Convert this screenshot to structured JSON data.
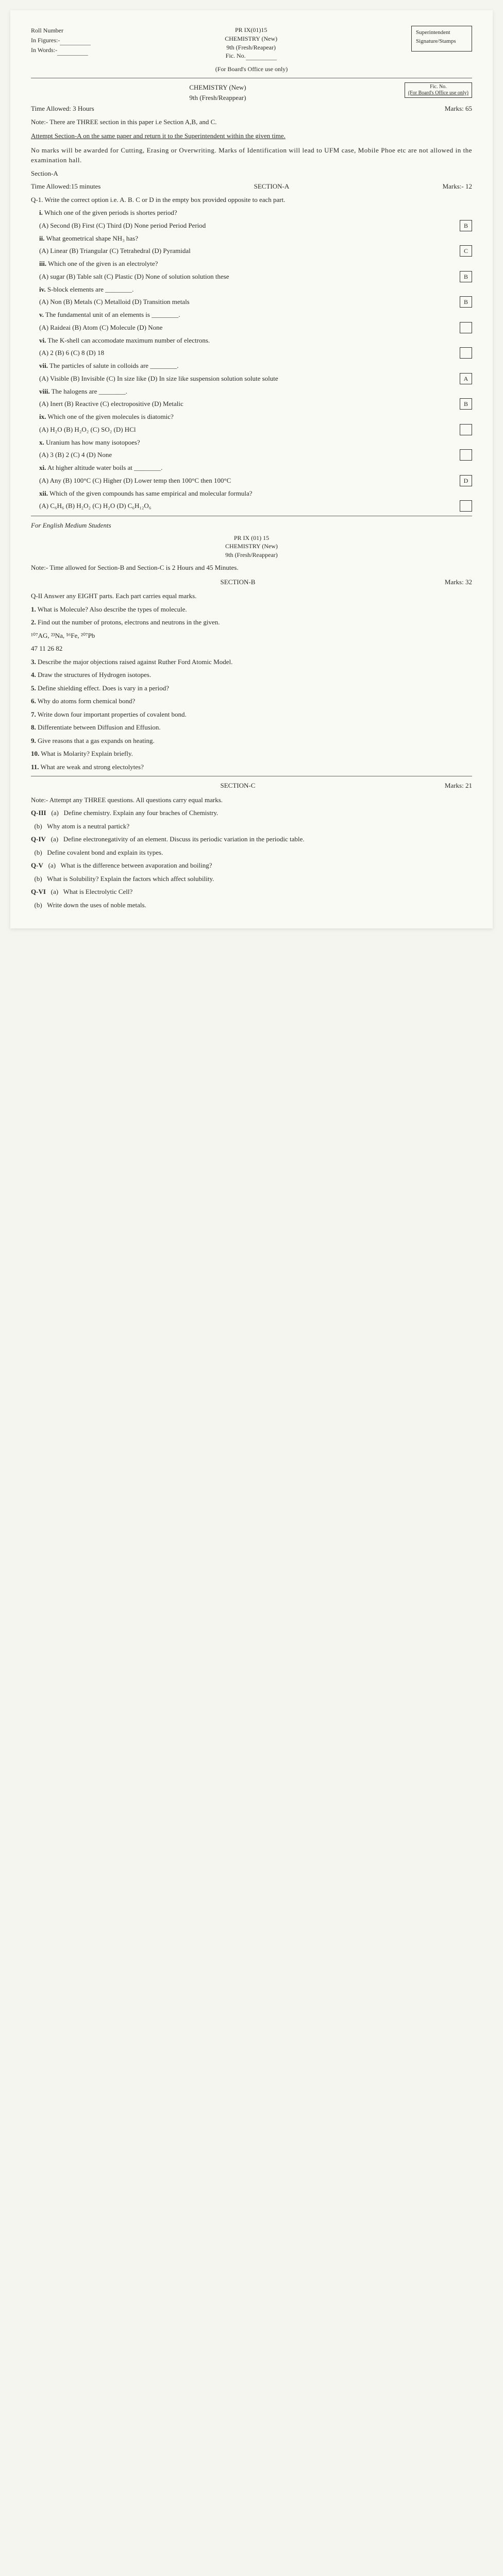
{
  "hdr": {
    "roll": "Roll Number",
    "fig": "In Figures:-",
    "words": "In Words:-",
    "code": "PR IX(01)15",
    "subj": "CHEMISTRY (New)",
    "grade": "9th (Fresh/Reapear)",
    "fic": "Fic. No.",
    "super": "Superintendent Signature/Stamps",
    "board": "(For Board's Office use only)"
  },
  "info": {
    "subj2": "CHEMISTRY (New)",
    "grade2": "9th (Fresh/Reappear)",
    "time": "Time Allowed: 3 Hours",
    "marks": "Marks: 65",
    "note": "Note:- There are THREE section in this paper i.e Section A,B, and C.",
    "attempt": "Attempt Section-A on the same paper and return it to the Superintendent within the given time.",
    "rules": "No marks will be awarded for Cutting, Erasing or Overwriting. Marks of Identification will lead to UFM case, Mobile Phoe etc are not allowed in the examination hall.",
    "secA": "Section-A",
    "timeA": "Time Allowed:15 minutes",
    "secAlbl": "SECTION-A",
    "marksA": "Marks:- 12",
    "q1": "Q-1. Write the correct option i.e. A. B. C or D in the empty box provided opposite to each part.",
    "ficbox": "Fic. No.",
    "ficuse": "(For Board's Office use only)"
  },
  "qa": [
    {
      "n": "i.",
      "t": "Which one of the given periods is shortes period?",
      "o": "(A) Second (B) First (C) Third (D) None period   Period   Period",
      "a": "B"
    },
    {
      "n": "ii.",
      "t": "What geometrical shape NH₃ has?",
      "o": "(A) Linear (B) Triangular (C) Tetrahedral (D) Pyramidal",
      "a": "C"
    },
    {
      "n": "iii.",
      "t": "Which one of the given is an electrolyte?",
      "o": "(A) sugar (B) Table salt (C) Plastic (D) None of solution   solution   these",
      "a": "B"
    },
    {
      "n": "iv.",
      "t": "S-block elements are ________.",
      "o": "(A) Non (B) Metals (C) Metalloid (D) Transition metals",
      "a": "B"
    },
    {
      "n": "v.",
      "t": "The fundamental unit of an elements is ________.",
      "o": "(A) Raideai (B) Atom (C) Molecule (D) None",
      "a": ""
    },
    {
      "n": "vi.",
      "t": "The K-shell can accomodate maximum number of electrons.",
      "o": "(A) 2   (B) 6   (C) 8   (D) 18",
      "a": ""
    },
    {
      "n": "vii.",
      "t": "The particles of salute in colloids are ________.",
      "o": "(A) Visible (B) Invisible (C) In size like (D) In size like suspension solution solute   solute",
      "a": "A"
    },
    {
      "n": "viii.",
      "t": "The halogens are ________.",
      "o": "(A) Inert (B) Reactive (C) electropositive (D) Metalic",
      "a": "B"
    },
    {
      "n": "ix.",
      "t": "Which one of the given molecules is diatomic?",
      "o": "(A) H₂O   (B) H₂O₂   (C) SO₂   (D) HCl",
      "a": ""
    },
    {
      "n": "x.",
      "t": "Uranium has how many isotopoes?",
      "o": "(A) 3   (B) 2   (C) 4   (D) None",
      "a": ""
    },
    {
      "n": "xi.",
      "t": "At higher altitude water boils at ________.",
      "o": "(A) Any (B) 100°C (C) Higher (D) Lower temp   then 100°C   then 100°C",
      "a": "D"
    },
    {
      "n": "xii.",
      "t": "Which of the given compounds has same empirical and molecular formula?",
      "o": "(A) C₆H₆   (B) H₂O₂   (C) H₂O   (D) C₆H₁₂O₆",
      "a": ""
    }
  ],
  "eng": {
    "for": "For English Medium Students",
    "code": "PR IX (01) 15",
    "subj": "CHEMISTRY (New)",
    "grade": "9th (Fresh/Reappear)",
    "note": "Note:- Time allowed for Section-B and Section-C is 2 Hours and 45 Minutes.",
    "secB": "SECTION-B",
    "marksB": "Marks: 32",
    "qII": "Q-II Answer any EIGHT parts. Each part carries equal marks."
  },
  "b": [
    {
      "n": "1.",
      "t": "What is Molecule? Also describe the types of molecule."
    },
    {
      "n": "2.",
      "t": "Find out the number of protons, electrons and neutrons in the given."
    },
    {
      "n": "",
      "t": "¹⁰⁷AG, ²³Na, ⁵⁶Fe, ²⁰⁷Pb"
    },
    {
      "n": "",
      "t": "  47    11    26    82"
    },
    {
      "n": "3.",
      "t": "Describe the major objections raised against Ruther Ford Atomic Model."
    },
    {
      "n": "4.",
      "t": "Draw the structures of Hydrogen isotopes."
    },
    {
      "n": "5.",
      "t": "Define shielding effect. Does is vary in a period?"
    },
    {
      "n": "6.",
      "t": "Why do atoms form chemical bond?"
    },
    {
      "n": "7.",
      "t": "Write down four important properties of covalent bond."
    },
    {
      "n": "8.",
      "t": "Differentiate between Diffusion and Effusion."
    },
    {
      "n": "9.",
      "t": "Give reasons that a gas expands on heating."
    },
    {
      "n": "10.",
      "t": "What is Molarity? Explain briefly."
    },
    {
      "n": "11.",
      "t": "What are weak and strong electolytes?"
    }
  ],
  "c": {
    "sec": "SECTION-C",
    "marks": "Marks: 21",
    "note": "Note:- Attempt any THREE questions. All questions carry equal marks."
  },
  "cq": [
    {
      "n": "Q-III",
      "a": "(a)",
      "t": "Define chemistry. Explain any four braches of Chemistry."
    },
    {
      "n": "",
      "a": "(b)",
      "t": "Why atom is a neutral partick?"
    },
    {
      "n": "Q-IV",
      "a": "(a)",
      "t": "Define electronegativity of an element. Discuss its periodic variation in the periodic table."
    },
    {
      "n": "",
      "a": "(b)",
      "t": "Define covalent bond and explain its types."
    },
    {
      "n": "Q-V",
      "a": "(a)",
      "t": "What is the difference between avaporation and boiling?"
    },
    {
      "n": "",
      "a": "(b)",
      "t": "What is Solubility? Explain the factors which affect solubility."
    },
    {
      "n": "Q-VI",
      "a": "(a)",
      "t": "What is Electrolytic Cell?"
    },
    {
      "n": "",
      "a": "(b)",
      "t": "Write down the uses of noble metals."
    }
  ]
}
